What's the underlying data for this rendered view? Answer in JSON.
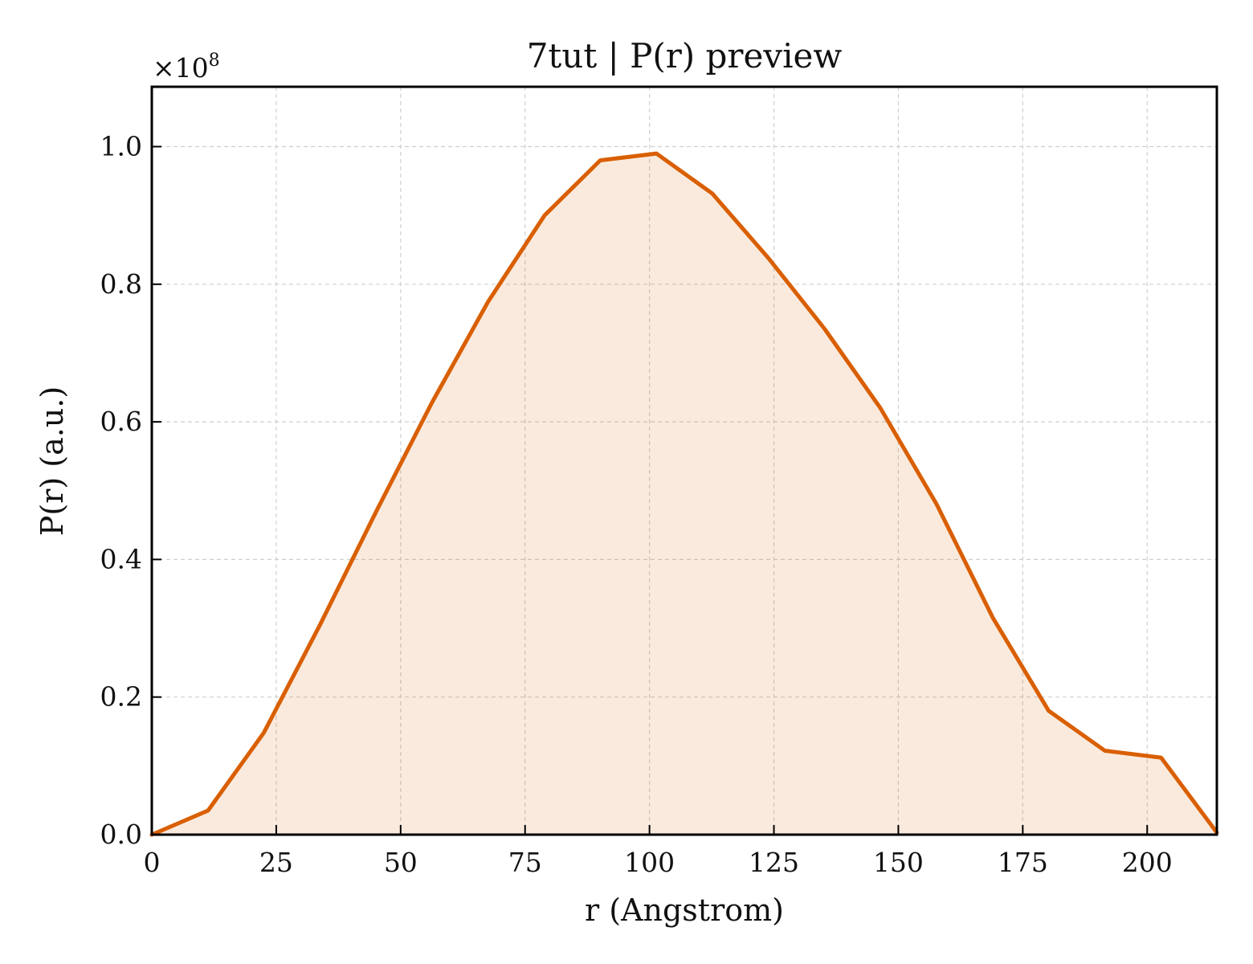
{
  "chart_data": {
    "type": "area",
    "title": "7tut | P(r) preview",
    "xlabel": "r (Angstrom)",
    "ylabel": "P(r) (a.u.)",
    "y_multiplier_label_base": "×10",
    "y_multiplier_label_exp": "8",
    "xlim": [
      0,
      214
    ],
    "ylim": [
      0,
      1.087
    ],
    "xticks": [
      0,
      25,
      50,
      75,
      100,
      125,
      150,
      175,
      200
    ],
    "xtick_labels": [
      "0",
      "25",
      "50",
      "75",
      "100",
      "125",
      "150",
      "175",
      "200"
    ],
    "yticks": [
      0.0,
      0.2,
      0.4,
      0.6,
      0.8,
      1.0
    ],
    "ytick_labels": [
      "0.0",
      "0.2",
      "0.4",
      "0.6",
      "0.8",
      "1.0"
    ],
    "grid": true,
    "colors": {
      "line": "#d95f02",
      "fill": "#d95f02",
      "fill_opacity": 0.13
    },
    "series": [
      {
        "x": [
          0,
          11.3,
          22.5,
          33.8,
          45.1,
          56.3,
          67.6,
          78.9,
          90.1,
          101.4,
          112.6,
          123.9,
          135.2,
          146.4,
          157.7,
          169.0,
          180.2,
          191.5,
          202.8,
          214.0
        ],
        "y": [
          0.0,
          0.035,
          0.148,
          0.305,
          0.47,
          0.628,
          0.775,
          0.9,
          0.98,
          0.99,
          0.932,
          0.838,
          0.735,
          0.62,
          0.48,
          0.315,
          0.18,
          0.122,
          0.112,
          0.003
        ]
      }
    ]
  }
}
